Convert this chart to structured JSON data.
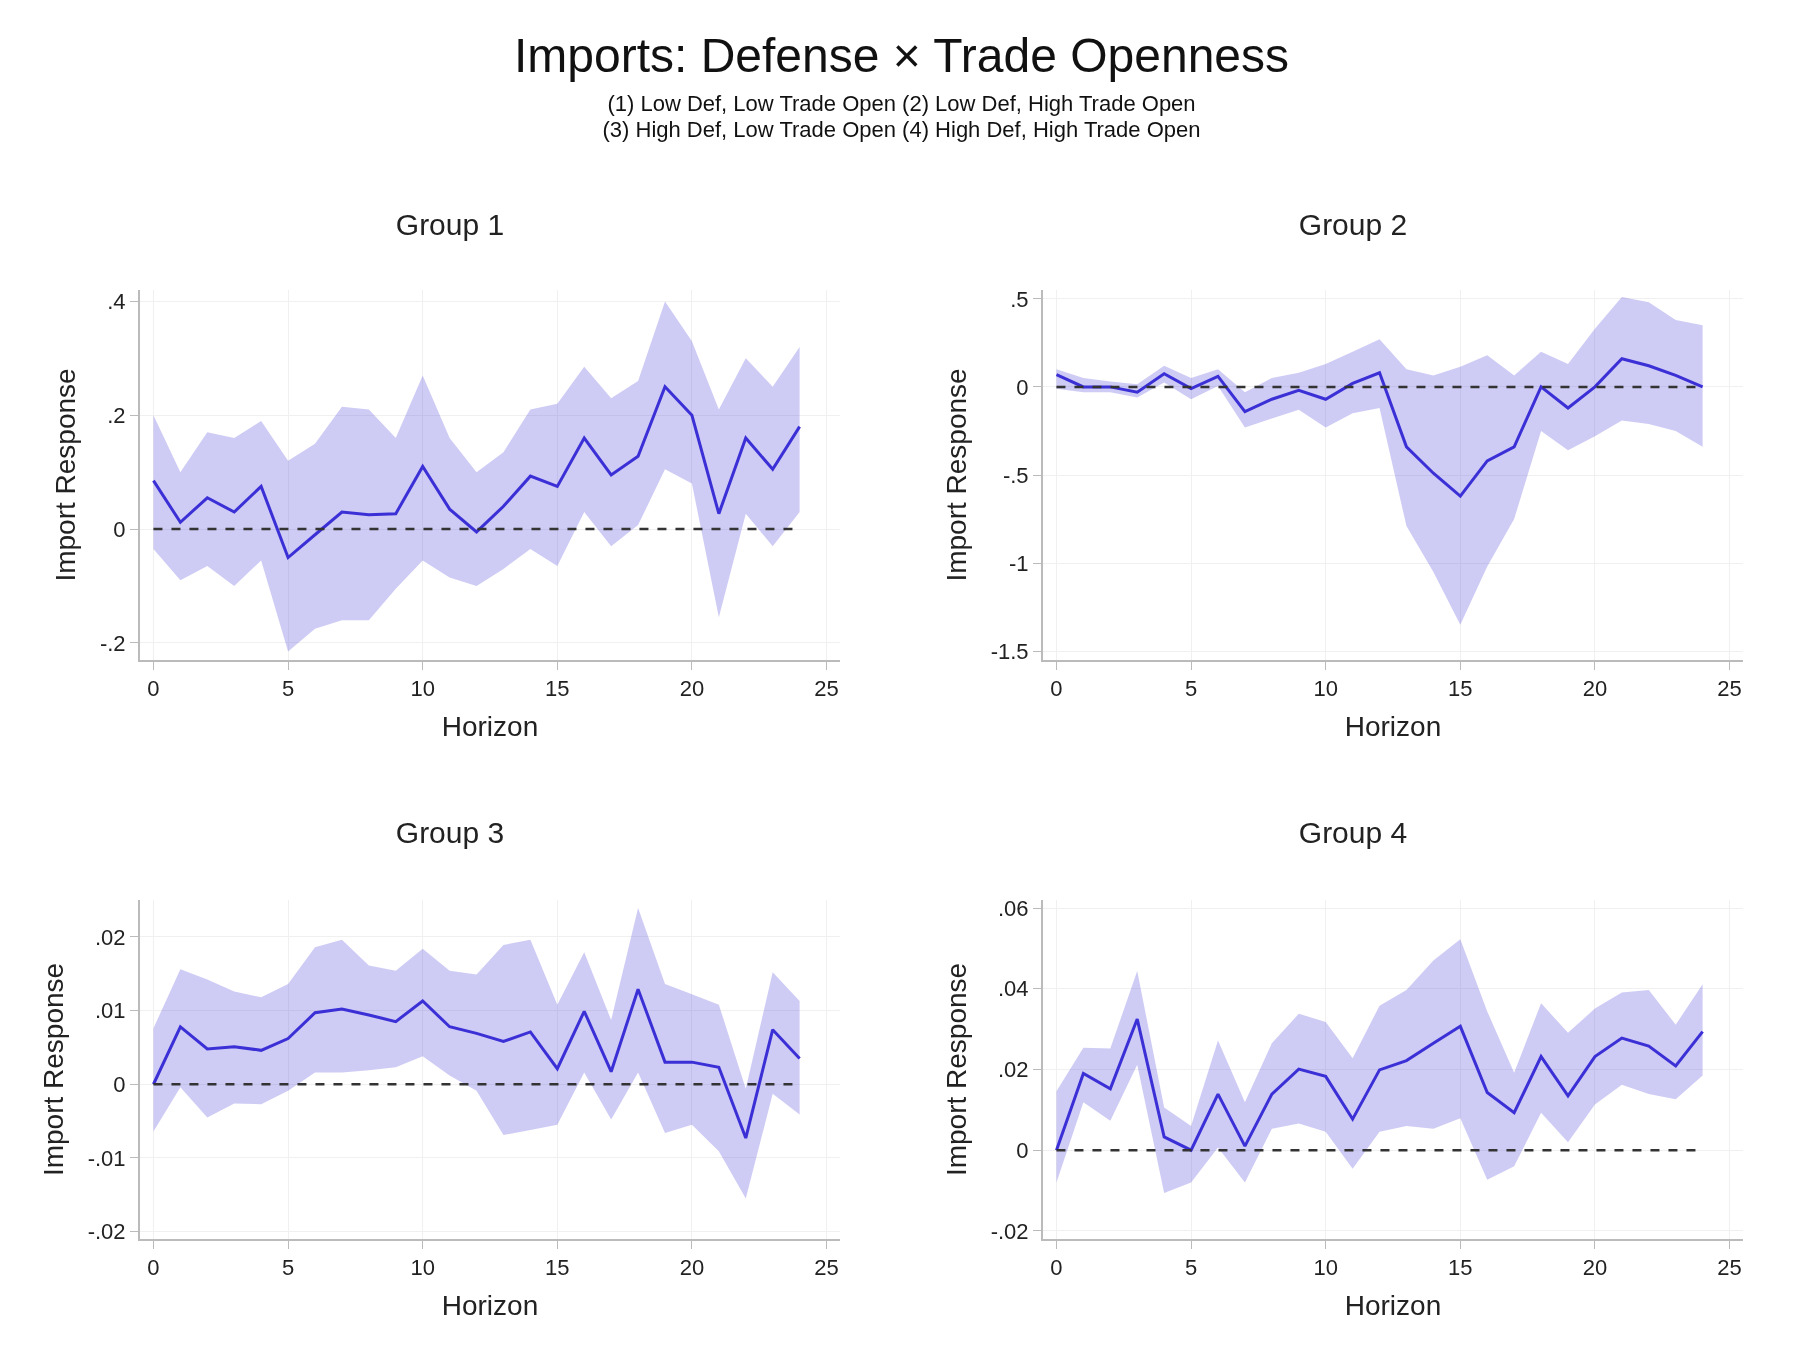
{
  "chart_data": [
    {
      "type": "line",
      "title": "Group 1",
      "xlabel": "Horizon",
      "ylabel": "Import Response",
      "annotations": [
        "Imports: Defense × Trade Openness",
        "(1) Low Def, Low Trade Open  (2) Low Def, High Trade Open\n(3) High Def, Low Trade Open  (4) High Def, High Trade Open"
      ],
      "x": [
        0,
        1,
        2,
        3,
        4,
        5,
        6,
        7,
        8,
        9,
        10,
        11,
        12,
        13,
        14,
        15,
        16,
        17,
        18,
        19,
        20,
        21,
        22,
        23,
        24
      ],
      "series": [
        {
          "color": "#3b2fd6",
          "values": [
            0.085,
            0.012,
            0.055,
            0.03,
            0.075,
            -0.05,
            -0.01,
            0.03,
            0.025,
            0.027,
            0.11,
            0.035,
            -0.005,
            0.04,
            0.093,
            0.075,
            0.16,
            0.095,
            0.128,
            0.25,
            0.2,
            0.027,
            0.16,
            0.105,
            0.18
          ],
          "upper": [
            0.2,
            0.1,
            0.17,
            0.16,
            0.19,
            0.12,
            0.15,
            0.215,
            0.21,
            0.16,
            0.27,
            0.16,
            0.1,
            0.135,
            0.21,
            0.22,
            0.285,
            0.23,
            0.26,
            0.4,
            0.33,
            0.21,
            0.3,
            0.25,
            0.32
          ],
          "lower": [
            -0.035,
            -0.09,
            -0.065,
            -0.1,
            -0.055,
            -0.215,
            -0.175,
            -0.16,
            -0.16,
            -0.105,
            -0.055,
            -0.085,
            -0.1,
            -0.07,
            -0.035,
            -0.065,
            0.03,
            -0.03,
            0.007,
            0.105,
            0.08,
            -0.155,
            0.027,
            -0.03,
            0.03
          ]
        }
      ],
      "ref_lines": [
        {
          "axis": "y",
          "value": 0,
          "color": "#333333",
          "line_style": "dashed"
        }
      ],
      "xlim": [
        -0.5,
        25.5
      ],
      "xticks": [
        0,
        5,
        10,
        15,
        20,
        25
      ],
      "ylim": [
        -0.23,
        0.42
      ],
      "yticks": [
        {
          "value": -0.2,
          "label": "-.2"
        },
        {
          "value": 0,
          "label": "0"
        },
        {
          "value": 0.2,
          "label": ".2"
        },
        {
          "value": 0.4,
          "label": ".4"
        }
      ],
      "grid": true
    },
    {
      "type": "line",
      "title": "Group 2",
      "xlabel": "Horizon",
      "ylabel": "Import Response",
      "x": [
        0,
        1,
        2,
        3,
        4,
        5,
        6,
        7,
        8,
        9,
        10,
        11,
        12,
        13,
        14,
        15,
        16,
        17,
        18,
        19,
        20,
        21,
        22,
        23,
        24
      ],
      "series": [
        {
          "color": "#3b2fd6",
          "values": [
            0.07,
            0,
            0,
            -0.03,
            0.075,
            -0.01,
            0.06,
            -0.14,
            -0.07,
            -0.02,
            -0.07,
            0.02,
            0.08,
            -0.34,
            -0.49,
            -0.62,
            -0.42,
            -0.34,
            0,
            -0.12,
            0,
            0.16,
            0.12,
            0.065,
            0
          ],
          "upper": [
            0.1,
            0.05,
            0.03,
            0.015,
            0.12,
            0.05,
            0.1,
            -0.03,
            0.05,
            0.08,
            0.13,
            0.2,
            0.27,
            0.1,
            0.065,
            0.115,
            0.18,
            0.065,
            0.2,
            0.13,
            0.33,
            0.51,
            0.48,
            0.38,
            0.35
          ],
          "lower": [
            -0.01,
            -0.03,
            -0.03,
            -0.06,
            0.025,
            -0.07,
            0.005,
            -0.23,
            -0.18,
            -0.13,
            -0.23,
            -0.15,
            -0.12,
            -0.79,
            -1.05,
            -1.35,
            -1.02,
            -0.75,
            -0.25,
            -0.36,
            -0.28,
            -0.19,
            -0.21,
            -0.25,
            -0.34
          ]
        }
      ],
      "ref_lines": [
        {
          "axis": "y",
          "value": 0,
          "color": "#333333",
          "line_style": "dashed"
        }
      ],
      "xlim": [
        -0.5,
        25.5
      ],
      "xticks": [
        0,
        5,
        10,
        15,
        20,
        25
      ],
      "ylim": [
        -1.55,
        0.55
      ],
      "yticks": [
        {
          "value": -1.5,
          "label": "-1.5"
        },
        {
          "value": -1,
          "label": "-1"
        },
        {
          "value": -0.5,
          "label": "-.5"
        },
        {
          "value": 0,
          "label": "0"
        },
        {
          "value": 0.5,
          "label": ".5"
        }
      ],
      "grid": true
    },
    {
      "type": "line",
      "title": "Group 3",
      "xlabel": "Horizon",
      "ylabel": "Import Response",
      "x": [
        0,
        1,
        2,
        3,
        4,
        5,
        6,
        7,
        8,
        9,
        10,
        11,
        12,
        13,
        14,
        15,
        16,
        17,
        18,
        19,
        20,
        21,
        22,
        23,
        24
      ],
      "series": [
        {
          "color": "#3b2fd6",
          "values": [
            0,
            0.0078,
            0.0048,
            0.0051,
            0.0046,
            0.0062,
            0.0097,
            0.0102,
            0.0094,
            0.0085,
            0.0113,
            0.0078,
            0.0069,
            0.0058,
            0.0071,
            0.0021,
            0.0099,
            0.0017,
            0.0129,
            0.003,
            0.003,
            0.0023,
            -0.0073,
            0.0074,
            0.0035
          ],
          "upper": [
            0.0076,
            0.0156,
            0.0142,
            0.0126,
            0.0118,
            0.0136,
            0.0186,
            0.0196,
            0.0161,
            0.0154,
            0.0184,
            0.0154,
            0.0149,
            0.0189,
            0.0196,
            0.0108,
            0.0179,
            0.0087,
            0.0239,
            0.0136,
            0.0122,
            0.0108,
            -0.0006,
            0.0152,
            0.0113
          ],
          "lower": [
            -0.0064,
            -0.0004,
            -0.0045,
            -0.0026,
            -0.0027,
            -0.0009,
            0.0016,
            0.0016,
            0.0019,
            0.0023,
            0.0038,
            0.0012,
            -0.0009,
            -0.0069,
            -0.0062,
            -0.0055,
            0.0016,
            -0.0048,
            0.0016,
            -0.0066,
            -0.0055,
            -0.0091,
            -0.0155,
            -0.0013,
            -0.0041
          ]
        }
      ],
      "ref_lines": [
        {
          "axis": "y",
          "value": 0,
          "color": "#333333",
          "line_style": "dashed"
        }
      ],
      "xlim": [
        -0.5,
        25.5
      ],
      "xticks": [
        0,
        5,
        10,
        15,
        20,
        25
      ],
      "ylim": [
        -0.021,
        0.025
      ],
      "yticks": [
        {
          "value": -0.02,
          "label": "-.02"
        },
        {
          "value": -0.01,
          "label": "-.01"
        },
        {
          "value": 0,
          "label": "0"
        },
        {
          "value": 0.01,
          "label": ".01"
        },
        {
          "value": 0.02,
          "label": ".02"
        }
      ],
      "grid": true
    },
    {
      "type": "line",
      "title": "Group 4",
      "xlabel": "Horizon",
      "ylabel": "Import Response",
      "x": [
        0,
        1,
        2,
        3,
        4,
        5,
        6,
        7,
        8,
        9,
        10,
        11,
        12,
        13,
        14,
        15,
        16,
        17,
        18,
        19,
        20,
        21,
        22,
        23,
        24
      ],
      "series": [
        {
          "color": "#3b2fd6",
          "values": [
            0,
            0.019,
            0.0152,
            0.0325,
            0.0033,
            0,
            0.0139,
            0.001,
            0.0139,
            0.0201,
            0.0183,
            0.0077,
            0.0199,
            0.0222,
            0.0265,
            0.0307,
            0.0143,
            0.0093,
            0.0232,
            0.0135,
            0.0232,
            0.0278,
            0.0258,
            0.0209,
            0.0294
          ],
          "upper": [
            0.0146,
            0.0254,
            0.0252,
            0.0444,
            0.0106,
            0.006,
            0.0272,
            0.0119,
            0.0265,
            0.0338,
            0.0318,
            0.0228,
            0.0358,
            0.0397,
            0.047,
            0.0523,
            0.0344,
            0.0192,
            0.0364,
            0.0291,
            0.0351,
            0.0391,
            0.0397,
            0.0311,
            0.0411
          ],
          "lower": [
            -0.008,
            0.0119,
            0.0073,
            0.0212,
            -0.0106,
            -0.008,
            0.0007,
            -0.008,
            0.0053,
            0.0066,
            0.0046,
            -0.0046,
            0.0046,
            0.006,
            0.0053,
            0.0079,
            -0.0073,
            -0.004,
            0.0093,
            0.002,
            0.0113,
            0.0162,
            0.0139,
            0.0126,
            0.0185
          ]
        }
      ],
      "ref_lines": [
        {
          "axis": "y",
          "value": 0,
          "color": "#333333",
          "line_style": "dashed"
        }
      ],
      "xlim": [
        -0.5,
        25.5
      ],
      "xticks": [
        0,
        5,
        10,
        15,
        20,
        25
      ],
      "ylim": [
        -0.022,
        0.062
      ],
      "yticks": [
        {
          "value": -0.02,
          "label": "-.02"
        },
        {
          "value": 0,
          "label": "0"
        },
        {
          "value": 0.02,
          "label": ".02"
        },
        {
          "value": 0.04,
          "label": ".04"
        },
        {
          "value": 0.06,
          "label": ".06"
        }
      ],
      "grid": true
    }
  ]
}
